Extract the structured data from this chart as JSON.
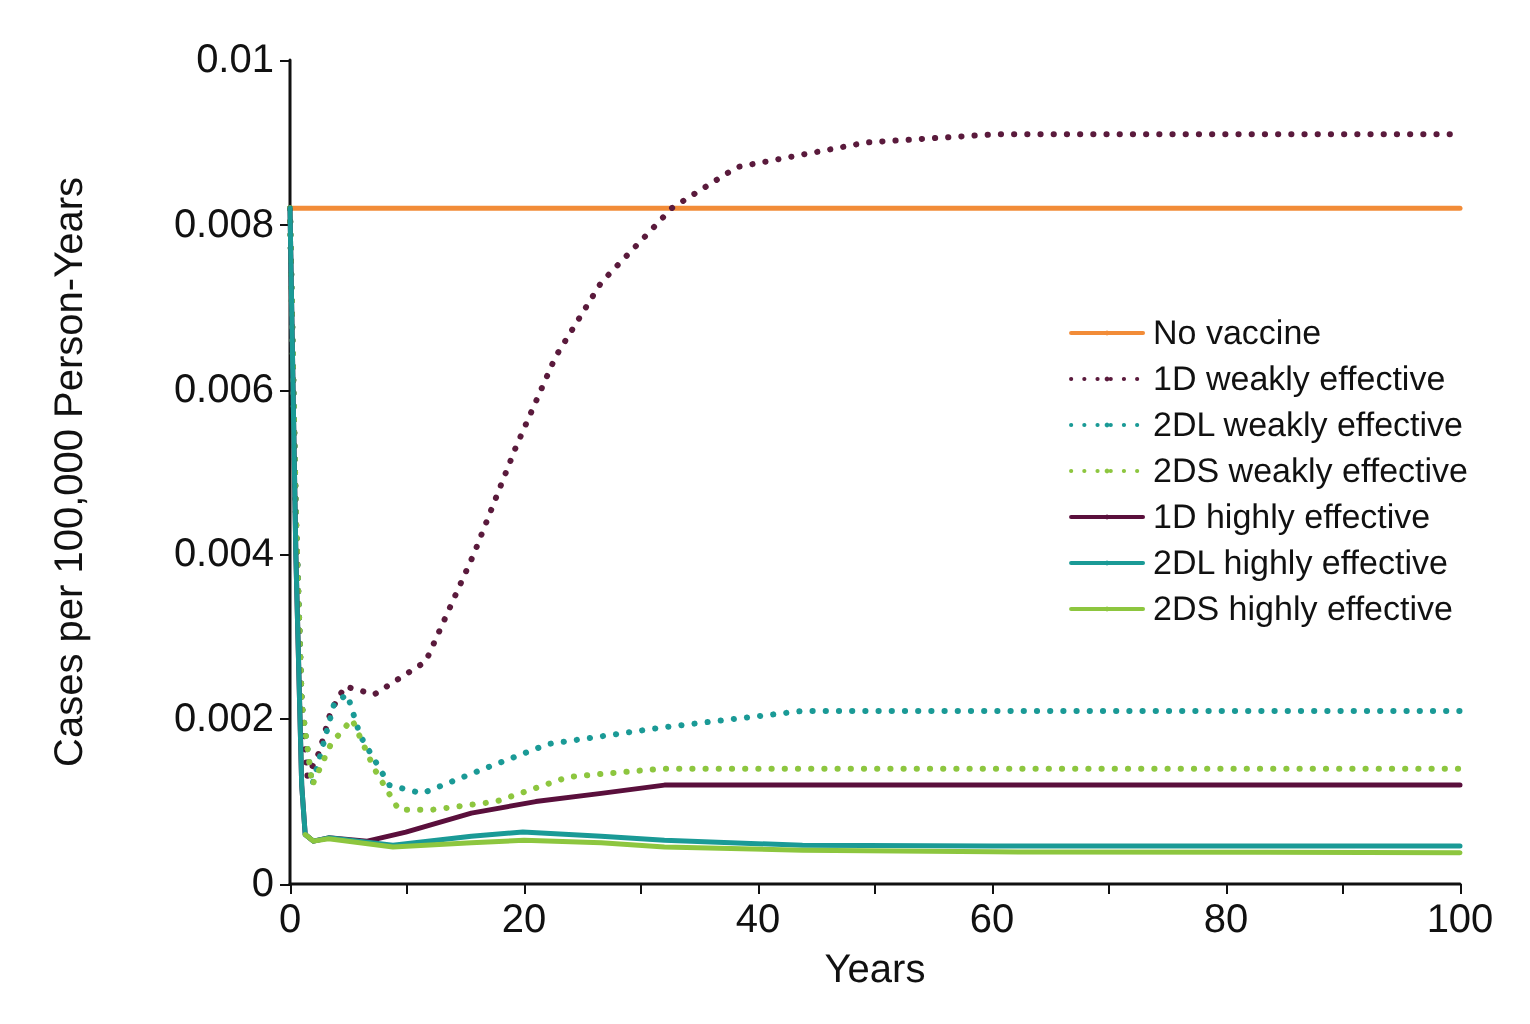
{
  "chart_data": {
    "type": "line",
    "xlabel": "Years",
    "ylabel": "Cases per 100,000 Person-Years",
    "xlim": [
      0,
      100
    ],
    "ylim": [
      0,
      0.01
    ],
    "xticks": [
      0,
      {
        "value": 10,
        "label": null
      },
      20,
      {
        "value": 30,
        "label": null
      },
      40,
      {
        "value": 50,
        "label": null
      },
      60,
      {
        "value": 70,
        "label": null
      },
      80,
      {
        "value": 90,
        "label": null
      },
      100
    ],
    "yticks": [
      0,
      0.002,
      0.004,
      0.006,
      0.008,
      0.01
    ],
    "grid": false,
    "legend": "right",
    "marker": "none",
    "series": [
      {
        "name": "No vaccine",
        "color": "#f28c38",
        "line_style": "solid",
        "x": [
          0,
          100
        ],
        "values": [
          0.0082,
          0.0082
        ]
      },
      {
        "name": "1D weakly effective",
        "color": "#5a1a3c",
        "line_style": "dotted",
        "x": [
          0,
          0.5,
          1,
          1.5,
          2.5,
          3.5,
          4.7,
          7.2,
          11.6,
          15.7,
          19.3,
          22.7,
          26.6,
          31.3,
          32.6,
          38.2,
          49.3,
          60.4,
          80,
          100
        ],
        "values": [
          0.0082,
          0.0045,
          0.0022,
          0.0013,
          0.0016,
          0.0021,
          0.0024,
          0.0023,
          0.0027,
          0.004,
          0.0053,
          0.0064,
          0.0073,
          0.008,
          0.0082,
          0.0087,
          0.009,
          0.0091,
          0.0091,
          0.0091
        ]
      },
      {
        "name": "2DL weakly effective",
        "color": "#1a9a96",
        "line_style": "dotted",
        "x": [
          0,
          0.5,
          1,
          1.9,
          3.8,
          4.9,
          6,
          8.5,
          11.3,
          16.6,
          22.1,
          27,
          31.8,
          43.8,
          60,
          100
        ],
        "values": [
          0.0082,
          0.0045,
          0.0022,
          0.0012,
          0.0022,
          0.0023,
          0.0018,
          0.0012,
          0.0011,
          0.0014,
          0.0017,
          0.0018,
          0.0019,
          0.0021,
          0.0021,
          0.0021
        ]
      },
      {
        "name": "2DS weakly effective",
        "color": "#8dc63f",
        "line_style": "dotted",
        "x": [
          0,
          0.5,
          1,
          1.9,
          3.5,
          5.3,
          7.2,
          9.3,
          12.1,
          17.6,
          23.8,
          31.8,
          43.8,
          60,
          100
        ],
        "values": [
          0.0082,
          0.0045,
          0.0022,
          0.0012,
          0.0017,
          0.002,
          0.0014,
          0.0009,
          0.0009,
          0.001,
          0.0013,
          0.0014,
          0.0014,
          0.0014,
          0.0014
        ]
      },
      {
        "name": "1D highly effective",
        "color": "#5a0f3c",
        "line_style": "solid",
        "x": [
          0,
          0.5,
          1,
          1.3,
          2,
          3.3,
          6.6,
          9.9,
          15.5,
          21,
          26.6,
          32,
          45,
          60,
          100
        ],
        "values": [
          0.0082,
          0.004,
          0.0012,
          0.0006,
          0.00052,
          0.00056,
          0.00052,
          0.00063,
          0.00086,
          0.001,
          0.0011,
          0.0012,
          0.0012,
          0.0012,
          0.0012
        ]
      },
      {
        "name": "2DL highly effective",
        "color": "#1a9a96",
        "line_style": "solid",
        "x": [
          0,
          0.5,
          1,
          1.3,
          2,
          3.3,
          8.8,
          15.5,
          19.9,
          26.6,
          32,
          43.8,
          60,
          100
        ],
        "values": [
          0.0082,
          0.004,
          0.0012,
          0.0006,
          0.00052,
          0.00056,
          0.00047,
          0.00058,
          0.00063,
          0.00058,
          0.00053,
          0.00047,
          0.00046,
          0.00046
        ]
      },
      {
        "name": "2DS highly effective",
        "color": "#8dc63f",
        "line_style": "solid",
        "x": [
          1.3,
          2,
          3.3,
          8.8,
          15.5,
          20,
          26.6,
          32,
          43.8,
          60,
          100
        ],
        "values": [
          0.0006,
          0.00052,
          0.00055,
          0.00045,
          0.0005,
          0.00053,
          0.0005,
          0.00045,
          0.00041,
          0.00039,
          0.00038
        ]
      }
    ]
  }
}
